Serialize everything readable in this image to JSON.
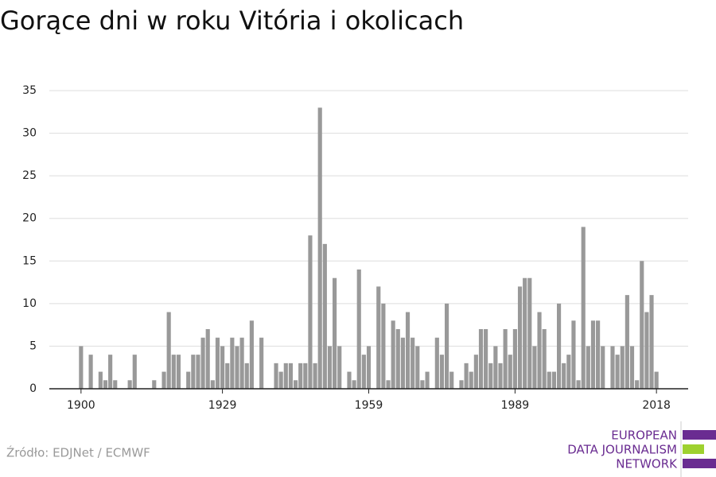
{
  "chart_data": {
    "type": "bar",
    "title": "Gorące dni w roku Vitória i okolicach",
    "source": "Źródło: EDJNet / ECMWF",
    "logo": [
      "EUROPEAN",
      "DATA JOURNALISM",
      "NETWORK"
    ],
    "color": "#999999",
    "x": [
      1900,
      1901,
      1902,
      1903,
      1904,
      1905,
      1906,
      1907,
      1908,
      1909,
      1910,
      1911,
      1912,
      1913,
      1914,
      1915,
      1916,
      1917,
      1918,
      1919,
      1920,
      1921,
      1922,
      1923,
      1924,
      1925,
      1926,
      1927,
      1928,
      1929,
      1930,
      1931,
      1932,
      1933,
      1934,
      1935,
      1936,
      1937,
      1938,
      1939,
      1940,
      1941,
      1942,
      1943,
      1944,
      1945,
      1946,
      1947,
      1948,
      1949,
      1950,
      1951,
      1952,
      1953,
      1954,
      1955,
      1956,
      1957,
      1958,
      1959,
      1960,
      1961,
      1962,
      1963,
      1964,
      1965,
      1966,
      1967,
      1968,
      1969,
      1970,
      1971,
      1972,
      1973,
      1974,
      1975,
      1976,
      1977,
      1978,
      1979,
      1980,
      1981,
      1982,
      1983,
      1984,
      1985,
      1986,
      1987,
      1988,
      1989,
      1990,
      1991,
      1992,
      1993,
      1994,
      1995,
      1996,
      1997,
      1998,
      1999,
      2000,
      2001,
      2002,
      2003,
      2004,
      2005,
      2006,
      2007,
      2008,
      2009,
      2010,
      2011,
      2012,
      2013,
      2014,
      2015,
      2016,
      2017,
      2018
    ],
    "values": [
      5,
      0,
      4,
      0,
      2,
      1,
      4,
      1,
      0,
      0,
      1,
      4,
      0,
      0,
      0,
      1,
      0,
      2,
      9,
      4,
      4,
      0,
      2,
      4,
      4,
      6,
      7,
      1,
      6,
      5,
      3,
      6,
      5,
      6,
      3,
      8,
      0,
      6,
      0,
      0,
      3,
      2,
      3,
      3,
      1,
      3,
      3,
      18,
      3,
      33,
      17,
      5,
      13,
      5,
      0,
      2,
      1,
      14,
      4,
      5,
      0,
      12,
      10,
      1,
      8,
      7,
      6,
      9,
      6,
      5,
      1,
      2,
      0,
      6,
      4,
      10,
      2,
      0,
      1,
      3,
      2,
      4,
      7,
      7,
      3,
      5,
      3,
      7,
      4,
      7,
      12,
      13,
      13,
      5,
      9,
      7,
      2,
      2,
      10,
      3,
      4,
      8,
      1,
      19,
      5,
      8,
      8,
      5,
      0,
      5,
      4,
      5,
      11,
      5,
      1,
      15,
      9,
      11,
      2
    ],
    "xlim": [
      1893.5,
      2024.5
    ],
    "xticks": [
      1900,
      1929,
      1959,
      1989,
      2018
    ],
    "ylim": [
      0,
      35
    ],
    "yticks": [
      0,
      5,
      10,
      15,
      20,
      25,
      30,
      35
    ],
    "grid": true
  }
}
